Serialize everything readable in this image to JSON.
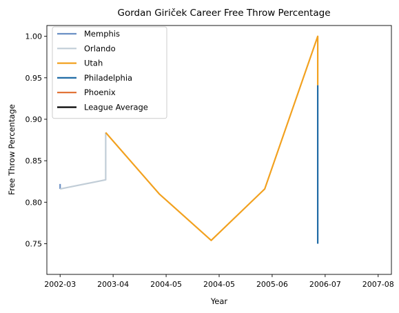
{
  "chart_data": {
    "type": "line",
    "title": "Gordan Giriček Career Free Throw Percentage",
    "xlabel": "Year",
    "ylabel": "Free Throw Percentage",
    "x_ticks": [
      "2002-03",
      "2003-04",
      "2004-05",
      "2004-05",
      "2005-06",
      "2006-07",
      "2007-08"
    ],
    "x_tick_positions": [
      0,
      1,
      2,
      3,
      4,
      5,
      6
    ],
    "xlim": [
      -0.25,
      6.25
    ],
    "ylim": [
      0.713,
      1.013
    ],
    "y_ticks": [
      0.75,
      0.8,
      0.85,
      0.9,
      0.95,
      1.0
    ],
    "y_tick_labels": [
      "0.75",
      "0.80",
      "0.85",
      "0.90",
      "0.95",
      "1.00"
    ],
    "grid": false,
    "legend_position": "top-left",
    "series": [
      {
        "name": "Memphis",
        "color": "#6a8fc4",
        "x": [
          0,
          0
        ],
        "y": [
          0.816,
          0.822
        ]
      },
      {
        "name": "Orlando",
        "color": "#c1cdd7",
        "x": [
          0,
          0.86,
          0.86
        ],
        "y": [
          0.816,
          0.827,
          0.884
        ]
      },
      {
        "name": "Utah",
        "color": "#f2a11f",
        "x": [
          0.86,
          1.87,
          2.85,
          3.86,
          4.86,
          4.86
        ],
        "y": [
          0.884,
          0.81,
          0.754,
          0.816,
          1.0,
          0.941
        ]
      },
      {
        "name": "Philadelphia",
        "color": "#1f6aa5",
        "x": [
          4.86,
          4.86
        ],
        "y": [
          0.941,
          0.75
        ]
      },
      {
        "name": "Phoenix",
        "color": "#e06c2c",
        "x": [],
        "y": []
      },
      {
        "name": "League Average",
        "color": "#000000",
        "x": [],
        "y": []
      }
    ]
  }
}
